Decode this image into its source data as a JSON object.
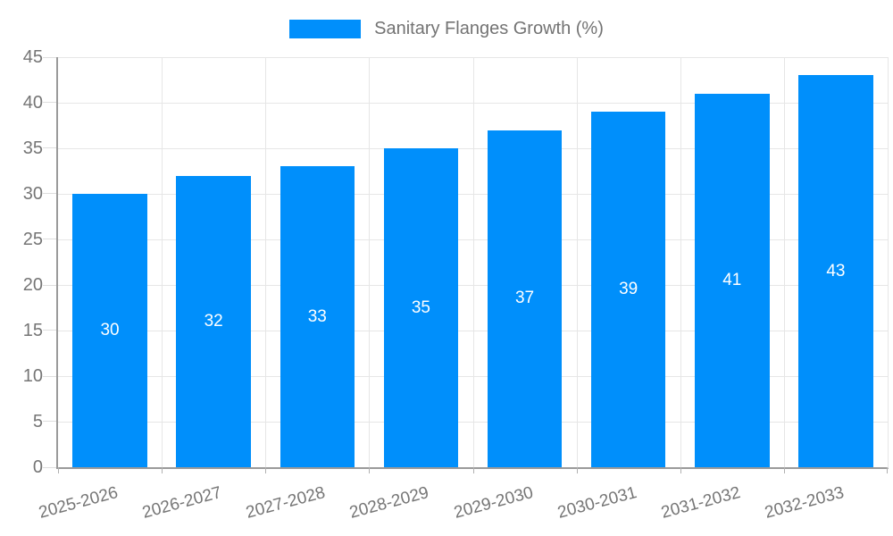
{
  "chart_data": {
    "type": "bar",
    "title": "Sanitary Flanges Growth (%)",
    "series_name": "Sanitary Flanges Growth (%)",
    "categories": [
      "2025-2026",
      "2026-2027",
      "2027-2028",
      "2028-2029",
      "2029-2030",
      "2030-2031",
      "2031-2032",
      "2032-2033"
    ],
    "values": [
      30,
      32,
      33,
      35,
      37,
      39,
      41,
      43
    ],
    "value_labels": [
      "30",
      "32",
      "33",
      "35",
      "37",
      "39",
      "41",
      "43"
    ],
    "xlabel": "",
    "ylabel": "",
    "ylim": [
      0,
      45
    ],
    "ytick_step": 5,
    "yticks": [
      0,
      5,
      10,
      15,
      20,
      25,
      30,
      35,
      40,
      45
    ],
    "grid": true,
    "legend_position": "top-center",
    "x_label_rotation_deg": -15
  },
  "legend": {
    "label": "Sanitary Flanges Growth (%)"
  },
  "colors": {
    "bar": "#008ffb",
    "value_label": "#ffffff",
    "axis_text": "#757575",
    "legend_text": "#737373",
    "gridline": "#e6e6e6",
    "axis_line": "#9a9a9a",
    "background": "#ffffff"
  }
}
